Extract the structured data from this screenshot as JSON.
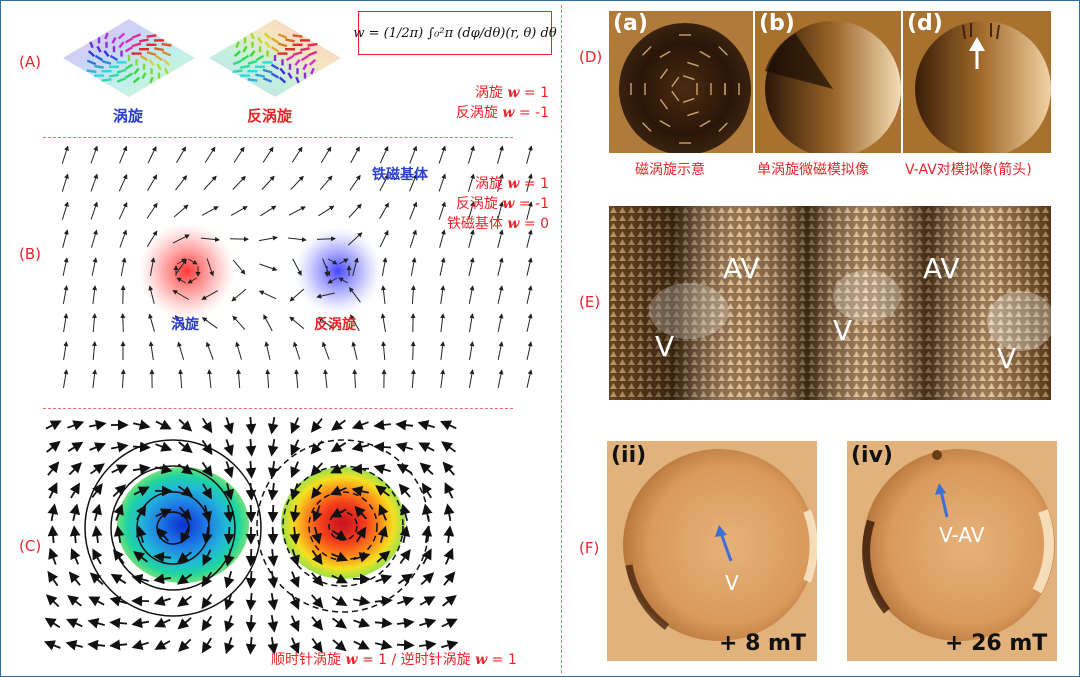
{
  "labels": {
    "A": "(A)",
    "B": "(B)",
    "C": "(C)",
    "D": "(D)",
    "E": "(E)",
    "F": "(F)"
  },
  "formula": "w = (1/2π) ∫₀²π (dφ/dθ)(r, θ) dθ",
  "panelA": {
    "vortex_label": "涡旋",
    "antivortex_label": "反涡旋",
    "line1_text": "涡旋 ",
    "line1_w": "w",
    "line1_val": " = 1",
    "line2_text": "反涡旋 ",
    "line2_w": "w",
    "line2_val": " = -1"
  },
  "panelB": {
    "ferro_label": "铁磁基体",
    "vortex_label": "涡旋",
    "antivortex_label": "反涡旋",
    "line1_text": "涡旋 ",
    "line1_w": "w",
    "line1_val": " = 1",
    "line2_text": "反涡旋 ",
    "line2_w": "w",
    "line2_val": " = -1",
    "line3_text": "铁磁基体 ",
    "line3_w": "w",
    "line3_val": " = 0"
  },
  "panelC": {
    "cap_a": "顺时针涡旋 ",
    "cap_w1": "w",
    "cap_b": " = 1 / 逆时针涡旋 ",
    "cap_w2": "w",
    "cap_c": " = 1"
  },
  "panelD": {
    "tile_a": "(a)",
    "tile_b": "(b)",
    "tile_d": "(d)",
    "cap_a": "磁涡旋示意",
    "cap_b": "单涡旋微磁模拟像",
    "cap_d": "V-AV对模拟像(箭头)"
  },
  "panelE": {
    "av1": "AV",
    "av2": "AV",
    "v1": "V",
    "v2": "V",
    "v3": "V"
  },
  "panelF": {
    "tag1": "(ii)",
    "tag2": "(iv)",
    "ann1": "V",
    "ann2": "V-AV",
    "field1": "+ 8 mT",
    "field2": "+ 26 mT"
  },
  "colors": {
    "accent_red": "#e8252a",
    "accent_blue": "#2b3ec9",
    "divider": "#ee6a6a"
  }
}
